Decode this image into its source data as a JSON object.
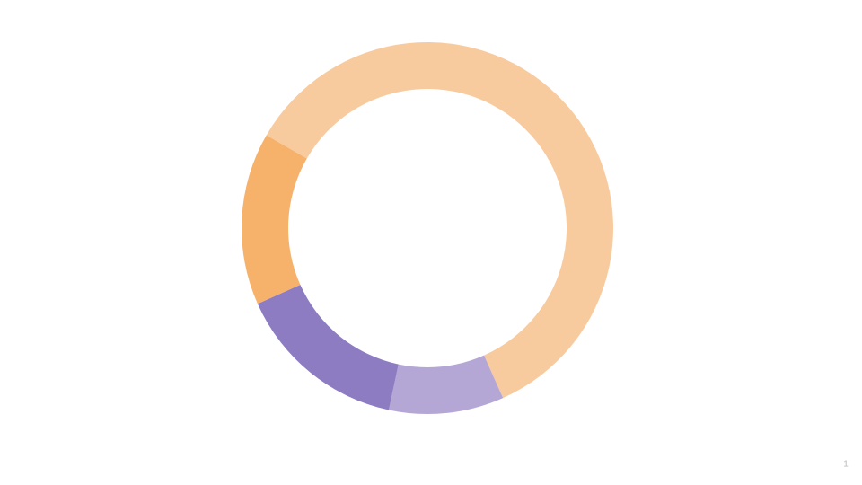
{
  "chart_data": {
    "type": "donut",
    "values": [
      60,
      10,
      15,
      15
    ],
    "colors": [
      "#f8cb9f",
      "#b4a7d6",
      "#8e7cc3",
      "#f6b26b"
    ]
  },
  "page_number": "1"
}
